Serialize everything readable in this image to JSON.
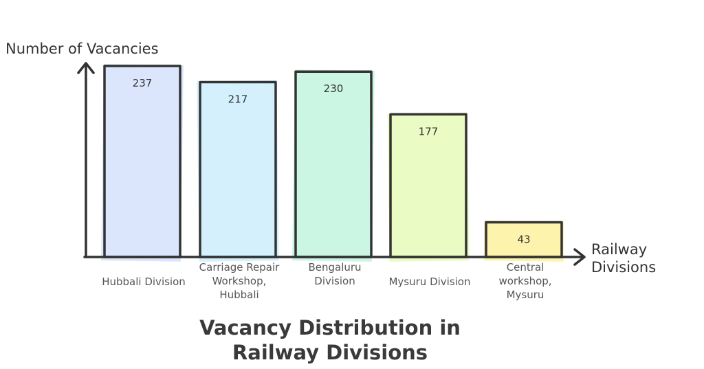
{
  "chart_data": {
    "type": "bar",
    "title_lines": [
      "Vacancy Distribution in",
      "Railway Divisions"
    ],
    "ylabel": "Number of Vacancies",
    "xlabel_lines": [
      "Railway",
      "Divisions"
    ],
    "categories": [
      [
        "Hubbali Division"
      ],
      [
        "Carriage Repair",
        "Workshop,",
        "Hubbali"
      ],
      [
        "Bengaluru",
        "Division"
      ],
      [
        "Mysuru Division"
      ],
      [
        "Central",
        "workshop,",
        "Mysuru"
      ]
    ],
    "values": [
      237,
      217,
      230,
      177,
      43
    ],
    "colors": [
      "#dbe6fc",
      "#d4f0fd",
      "#cbf6e3",
      "#eafbc3",
      "#fdf3ad"
    ],
    "ylim": [
      0,
      237
    ],
    "grid": false,
    "legend": "none"
  }
}
